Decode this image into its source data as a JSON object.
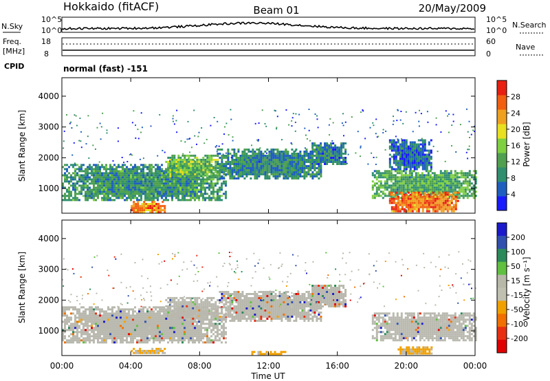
{
  "header": {
    "station": "Hokkaido (fitACF)",
    "beam": "Beam 01",
    "date": "20/May/2009"
  },
  "noise_panel": {
    "left_label": "N.Sky",
    "right_label": "N.Search",
    "tick_top": "10^5",
    "tick_bottom": "10^0"
  },
  "freq_panel": {
    "left_label_line1": "Freq.",
    "left_label_line2": "[MHz]",
    "left_tick_top": "18",
    "left_tick_bottom": "8",
    "right_label": "Nave",
    "right_tick_top": "60",
    "right_tick_bottom": "0"
  },
  "cpid_label": "CPID",
  "mode_label": "normal (fast) -151",
  "colors": {
    "power_scale": [
      "#1a1aff",
      "#1f5fbf",
      "#2f8f6f",
      "#4fa04f",
      "#7fd040",
      "#e8e020",
      "#f0a020",
      "#f06010",
      "#e82010"
    ],
    "velocity_scale": [
      "#1a1acc",
      "#3050b0",
      "#2a8a5a",
      "#60c040",
      "#b8b8a8",
      "#c0c0b0",
      "#f0a000",
      "#f07000",
      "#e83010",
      "#e00000"
    ],
    "gray_scatter": "#b8b8ae"
  },
  "chart_data": [
    {
      "type": "heatmap",
      "title": "Power",
      "ylabel": "Slant Range [km]",
      "xlabel": "",
      "ylim": [
        200,
        4600
      ],
      "y_ticks": [
        "1000",
        "2000",
        "3000",
        "4000"
      ],
      "colorbar": {
        "label": "Power [dB]",
        "ticks": [
          "4",
          "8",
          "12",
          "16",
          "20",
          "24",
          "28"
        ],
        "range": [
          0,
          32
        ]
      },
      "echo_bands": [
        {
          "t_start": 0.0,
          "t_end": 9.5,
          "range_low": 600,
          "range_high": 1800,
          "power": 10
        },
        {
          "t_start": 4.0,
          "t_end": 6.0,
          "range_low": 250,
          "range_high": 600,
          "power": 24
        },
        {
          "t_start": 6.0,
          "t_end": 9.0,
          "range_low": 1400,
          "range_high": 2100,
          "power": 14
        },
        {
          "t_start": 9.0,
          "t_end": 15.0,
          "range_low": 1300,
          "range_high": 2300,
          "power": 9
        },
        {
          "t_start": 14.5,
          "t_end": 16.5,
          "range_low": 1800,
          "range_high": 2500,
          "power": 8
        },
        {
          "t_start": 18.0,
          "t_end": 24.0,
          "range_low": 700,
          "range_high": 1600,
          "power": 12
        },
        {
          "t_start": 19.0,
          "t_end": 23.0,
          "range_low": 250,
          "range_high": 900,
          "power": 26
        },
        {
          "t_start": 19.0,
          "t_end": 21.5,
          "range_low": 1600,
          "range_high": 2600,
          "power": 6
        }
      ]
    },
    {
      "type": "heatmap",
      "title": "Velocity",
      "ylabel": "Slant Range [km]",
      "xlabel": "Time UT",
      "ylim": [
        200,
        4600
      ],
      "y_ticks": [
        "1000",
        "2000",
        "3000",
        "4000"
      ],
      "x_ticks": [
        "00:00",
        "04:00",
        "08:00",
        "12:00",
        "16:00",
        "20:00",
        "00:00"
      ],
      "colorbar": {
        "label": "Velocity [m s⁻¹]",
        "ticks": [
          "200",
          "100",
          "50",
          "15",
          "-15",
          "-50",
          "-100",
          "-200"
        ]
      },
      "echo_bands": [
        {
          "t_start": 0.0,
          "t_end": 9.5,
          "range_low": 600,
          "range_high": 1800,
          "velocity": 0
        },
        {
          "t_start": 6.0,
          "t_end": 9.0,
          "range_low": 1400,
          "range_high": 2100,
          "velocity": 0
        },
        {
          "t_start": 9.0,
          "t_end": 15.0,
          "range_low": 1300,
          "range_high": 2300,
          "velocity": 0
        },
        {
          "t_start": 14.5,
          "t_end": 16.5,
          "range_low": 1800,
          "range_high": 2500,
          "velocity": 0
        },
        {
          "t_start": 18.0,
          "t_end": 24.0,
          "range_low": 700,
          "range_high": 1600,
          "velocity": 0
        },
        {
          "t_start": 4.0,
          "t_end": 6.0,
          "range_low": 250,
          "range_high": 450,
          "velocity": -60
        },
        {
          "t_start": 11.0,
          "t_end": 13.0,
          "range_low": 250,
          "range_high": 350,
          "velocity": -60
        },
        {
          "t_start": 19.5,
          "t_end": 21.5,
          "range_low": 250,
          "range_high": 500,
          "velocity": -60
        }
      ]
    }
  ]
}
